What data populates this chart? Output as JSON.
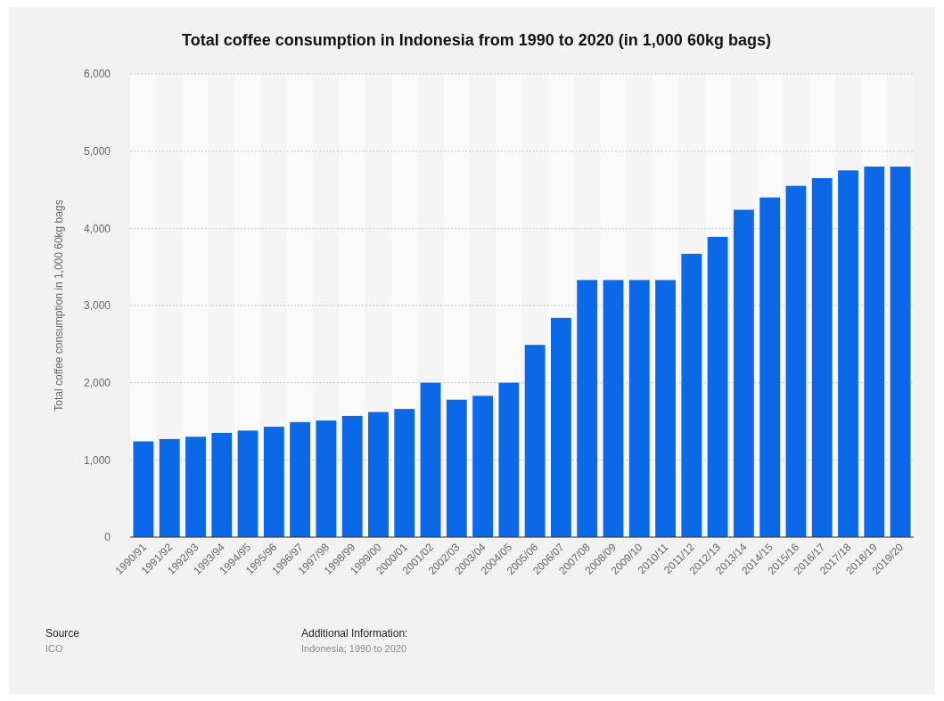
{
  "chart_data": {
    "type": "bar",
    "title": "Total coffee consumption in Indonesia from 1990 to 2020 (in 1,000 60kg bags)",
    "ylabel": "Total coffee consumption in 1,000 60kg bags",
    "categories": [
      "1990/91",
      "1991/92",
      "1992/93",
      "1993/94",
      "1994/95",
      "1995/96",
      "1996/97",
      "1997/98",
      "1998/99",
      "1999/00",
      "2000/01",
      "2001/02",
      "2002/03",
      "2003/04",
      "2004/05",
      "2005/06",
      "2006/07",
      "2007/08",
      "2008/09",
      "2009/10",
      "2010/11",
      "2011/12",
      "2012/13",
      "2013/14",
      "2014/15",
      "2015/16",
      "2016/17",
      "2017/18",
      "2018/19",
      "2019/20"
    ],
    "values": [
      1240,
      1270,
      1300,
      1350,
      1380,
      1430,
      1490,
      1510,
      1570,
      1620,
      1660,
      2000,
      1780,
      1830,
      2000,
      2490,
      2840,
      3330,
      3330,
      3330,
      3330,
      3670,
      3890,
      4240,
      4400,
      4550,
      4650,
      4750,
      4800,
      4800
    ],
    "color": "#0b68e6",
    "ylim": [
      0,
      6000
    ],
    "yticks": [
      {
        "value": 0,
        "label": "0"
      },
      {
        "value": 1000,
        "label": "1,000"
      },
      {
        "value": 2000,
        "label": "2,000"
      },
      {
        "value": 3000,
        "label": "3,000"
      },
      {
        "value": 4000,
        "label": "4,000"
      },
      {
        "value": 5000,
        "label": "5,000"
      },
      {
        "value": 6000,
        "label": "6,000"
      }
    ],
    "grid": "y",
    "annotations": [
      "Source",
      "ICO",
      "Additional Information:",
      "Indonesia; 1990 to 2020"
    ]
  }
}
